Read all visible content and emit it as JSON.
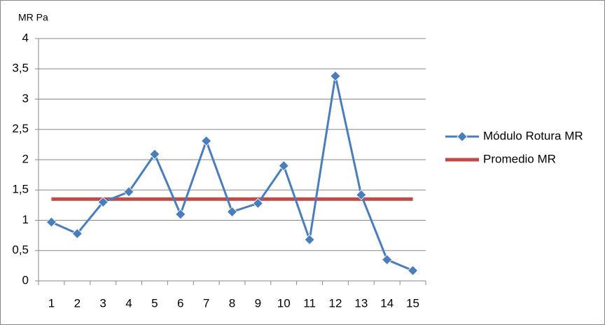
{
  "chart_data": {
    "type": "line",
    "y_label": "MR Pa",
    "categories": [
      "1",
      "2",
      "3",
      "4",
      "5",
      "6",
      "7",
      "8",
      "9",
      "10",
      "11",
      "12",
      "13",
      "14",
      "15"
    ],
    "series": [
      {
        "name": "Módulo Rotura MR",
        "color": "#4a7ebb",
        "marker": "diamond",
        "values": [
          0.97,
          0.78,
          1.3,
          1.47,
          2.09,
          1.1,
          2.31,
          1.14,
          1.28,
          1.9,
          0.68,
          3.38,
          1.42,
          0.35,
          0.17
        ]
      },
      {
        "name": "Promedio MR",
        "color": "#be4b48",
        "marker": "none",
        "values": [
          1.35,
          1.35,
          1.35,
          1.35,
          1.35,
          1.35,
          1.35,
          1.35,
          1.35,
          1.35,
          1.35,
          1.35,
          1.35,
          1.35,
          1.35
        ]
      }
    ],
    "ylim": [
      0,
      4
    ],
    "yticks": [
      0,
      {
        "value": 0.5,
        "label": "0,5"
      },
      1,
      {
        "value": 1.5,
        "label": "1,5"
      },
      2,
      {
        "value": 2.5,
        "label": "2,5"
      },
      3,
      {
        "value": 3.5,
        "label": "3,5"
      },
      4
    ],
    "grid": true,
    "legend": "right"
  }
}
